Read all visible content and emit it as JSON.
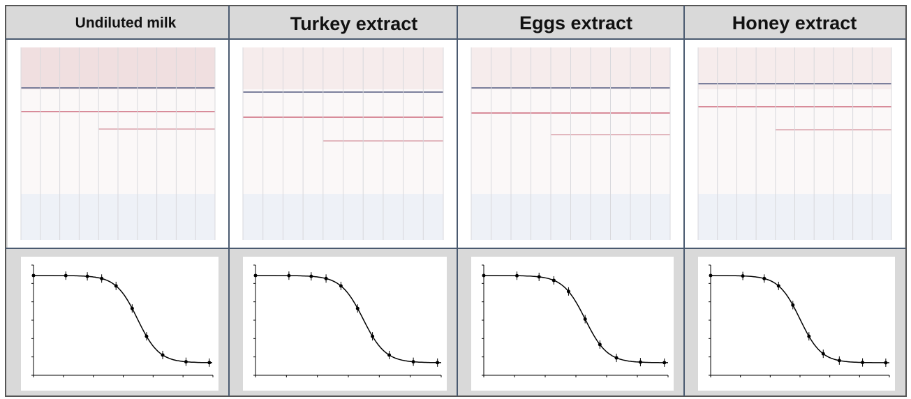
{
  "headers": [
    "Undiluted milk",
    "Turkey extract",
    "Eggs extract",
    "Honey extract"
  ]
}
